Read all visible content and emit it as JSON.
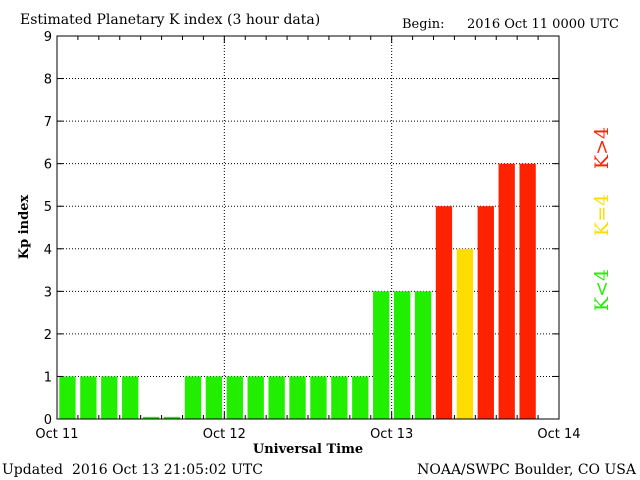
{
  "chart_data": {
    "type": "bar",
    "title": "Estimated Planetary K index (3 hour data)",
    "begin_label": "Begin:",
    "begin_value": "2016 Oct 11 0000 UTC",
    "ylabel": "Kp index",
    "xlabel": "Universal Time",
    "ylim": [
      0,
      9
    ],
    "yticks": [
      "0",
      "1",
      "2",
      "3",
      "4",
      "5",
      "6",
      "7",
      "8",
      "9"
    ],
    "xtick_labels": [
      "Oct 11",
      "Oct 12",
      "Oct 13",
      "Oct 14"
    ],
    "grid": true,
    "values": [
      1,
      1,
      1,
      1,
      0.05,
      0.05,
      1,
      1,
      1,
      1,
      1,
      1,
      1,
      1,
      1,
      3,
      3,
      3,
      5,
      4,
      5,
      6,
      6
    ],
    "colors": {
      "below": "#22ee00",
      "equal": "#ffdd00",
      "above": "#ff2200"
    },
    "legend": {
      "below": "K<4",
      "equal": "K=4",
      "above": "K>4",
      "placement": "right"
    }
  },
  "footer": {
    "updated_label": "Updated",
    "updated_value": "2016 Oct 13 21:05:02 UTC",
    "source": "NOAA/SWPC Boulder, CO USA"
  }
}
